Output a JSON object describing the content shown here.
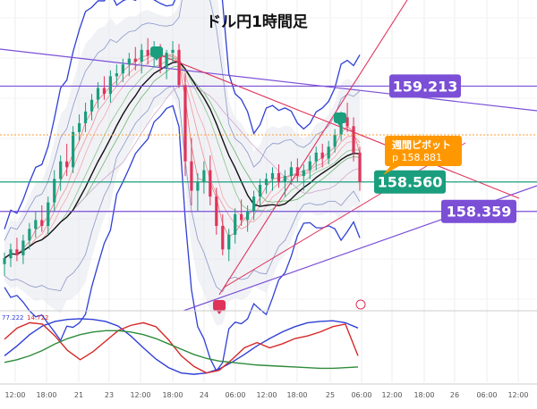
{
  "chart_data": {
    "type": "candlestick",
    "title": "ドル円1時間足",
    "timeframe": "1h",
    "x_ticks": [
      "12:00",
      "18:00",
      "21",
      "23",
      "12:00",
      "18:00",
      "24",
      "06:00",
      "12:00",
      "18:00",
      "25",
      "06:00",
      "12:00",
      "18:00",
      "26",
      "06:00",
      "12:00"
    ],
    "price_levels": [
      {
        "label": "159.213",
        "value": 159.213,
        "color": "#7b4fd6",
        "style": "line"
      },
      {
        "label": "158.881",
        "value": 158.881,
        "color": "#ff9a2e",
        "style": "dotted",
        "callout": [
          "週間ピボット",
          "p 158.881"
        ],
        "callout_color": "#ff9800"
      },
      {
        "label": "158.560",
        "value": 158.56,
        "color": "#1a9e7e",
        "style": "line"
      },
      {
        "label": "158.359",
        "value": 158.359,
        "color": "#7b4fd6",
        "style": "line"
      }
    ],
    "candles_ohlc": [
      [
        158.0,
        158.08,
        157.92,
        158.04
      ],
      [
        158.04,
        158.14,
        157.98,
        158.1
      ],
      [
        158.1,
        158.18,
        158.02,
        158.06
      ],
      [
        158.06,
        158.2,
        158.0,
        158.16
      ],
      [
        158.16,
        158.28,
        158.1,
        158.24
      ],
      [
        158.24,
        158.36,
        158.18,
        158.3
      ],
      [
        158.3,
        158.4,
        158.22,
        158.26
      ],
      [
        158.26,
        158.46,
        158.2,
        158.42
      ],
      [
        158.42,
        158.64,
        158.36,
        158.58
      ],
      [
        158.58,
        158.74,
        158.5,
        158.7
      ],
      [
        158.7,
        158.82,
        158.6,
        158.66
      ],
      [
        158.66,
        158.94,
        158.62,
        158.9
      ],
      [
        158.9,
        159.02,
        158.84,
        158.96
      ],
      [
        158.96,
        159.1,
        158.9,
        159.04
      ],
      [
        159.04,
        159.16,
        158.98,
        159.12
      ],
      [
        159.12,
        159.24,
        159.06,
        159.2
      ],
      [
        159.2,
        159.28,
        159.12,
        159.16
      ],
      [
        159.16,
        159.32,
        159.1,
        159.28
      ],
      [
        159.28,
        159.36,
        159.22,
        159.3
      ],
      [
        159.3,
        159.4,
        159.24,
        159.36
      ],
      [
        159.36,
        159.44,
        159.28,
        159.4
      ],
      [
        159.4,
        159.48,
        159.32,
        159.38
      ],
      [
        159.38,
        159.5,
        159.3,
        159.46
      ],
      [
        159.46,
        159.54,
        159.36,
        159.42
      ],
      [
        159.42,
        159.52,
        159.34,
        159.48
      ],
      [
        159.48,
        159.5,
        159.3,
        159.34
      ],
      [
        159.34,
        159.46,
        159.26,
        159.44
      ],
      [
        159.44,
        159.52,
        159.38,
        159.46
      ],
      [
        159.46,
        159.5,
        159.2,
        159.22
      ],
      [
        159.22,
        159.3,
        158.6,
        158.7
      ],
      [
        158.7,
        158.86,
        158.4,
        158.5
      ],
      [
        158.5,
        158.62,
        158.36,
        158.56
      ],
      [
        158.56,
        158.7,
        158.48,
        158.64
      ],
      [
        158.64,
        158.74,
        158.4,
        158.46
      ],
      [
        158.46,
        158.52,
        158.2,
        158.26
      ],
      [
        158.26,
        158.34,
        158.06,
        158.1
      ],
      [
        158.1,
        158.24,
        158.02,
        158.2
      ],
      [
        158.2,
        158.38,
        158.14,
        158.34
      ],
      [
        158.34,
        158.44,
        158.26,
        158.3
      ],
      [
        158.3,
        158.4,
        158.22,
        158.36
      ],
      [
        158.36,
        158.5,
        158.3,
        158.46
      ],
      [
        158.46,
        158.58,
        158.4,
        158.54
      ],
      [
        158.54,
        158.62,
        158.48,
        158.58
      ],
      [
        158.58,
        158.66,
        158.5,
        158.62
      ],
      [
        158.62,
        158.68,
        158.52,
        158.56
      ],
      [
        158.56,
        158.64,
        158.46,
        158.6
      ],
      [
        158.6,
        158.7,
        158.54,
        158.66
      ],
      [
        158.66,
        158.72,
        158.56,
        158.6
      ],
      [
        158.6,
        158.68,
        158.5,
        158.64
      ],
      [
        158.64,
        158.74,
        158.58,
        158.7
      ],
      [
        158.7,
        158.8,
        158.64,
        158.76
      ],
      [
        158.76,
        158.82,
        158.66,
        158.72
      ],
      [
        158.72,
        158.84,
        158.68,
        158.8
      ],
      [
        158.8,
        158.92,
        158.76,
        158.88
      ],
      [
        158.88,
        159.04,
        158.84,
        159.0
      ],
      [
        159.0,
        159.1,
        158.9,
        158.94
      ],
      [
        158.94,
        159.0,
        158.7,
        158.76
      ],
      [
        158.76,
        158.8,
        158.5,
        158.56
      ]
    ],
    "oscillator": {
      "labels": [
        "77.222",
        "14.722"
      ],
      "series": [
        {
          "color": "#2e3fd6",
          "values": [
            40,
            55,
            72,
            85,
            92,
            95,
            96,
            95,
            92,
            85,
            70,
            52,
            35,
            22,
            14,
            12,
            14,
            20,
            30,
            42,
            55,
            66,
            76,
            84,
            90,
            92,
            93,
            90,
            82
          ]
        },
        {
          "color": "#d62828",
          "values": [
            65,
            82,
            90,
            88,
            70,
            48,
            34,
            46,
            62,
            78,
            86,
            90,
            84,
            64,
            40,
            24,
            14,
            18,
            34,
            52,
            60,
            52,
            58,
            66,
            70,
            76,
            84,
            88,
            40
          ]
        },
        {
          "color": "#2e8b3a",
          "values": [
            30,
            34,
            40,
            48,
            58,
            66,
            72,
            76,
            78,
            78,
            76,
            72,
            66,
            58,
            50,
            42,
            36,
            32,
            30,
            28,
            26,
            25,
            24,
            23,
            22,
            21,
            21,
            22,
            23
          ]
        }
      ]
    },
    "grid": true
  }
}
